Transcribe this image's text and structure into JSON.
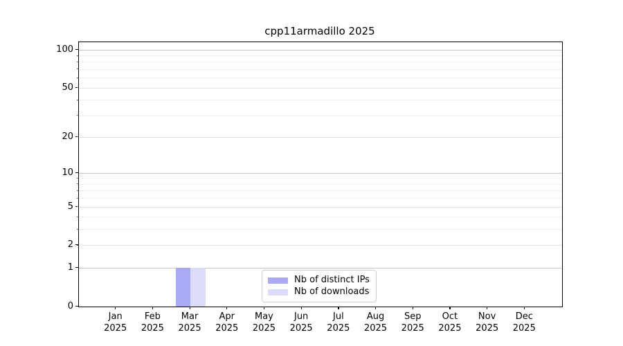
{
  "chart_data": {
    "type": "bar",
    "title": "cpp11armadillo 2025",
    "categories": [
      "Jan",
      "Feb",
      "Mar",
      "Apr",
      "May",
      "Jun",
      "Jul",
      "Aug",
      "Sep",
      "Oct",
      "Nov",
      "Dec"
    ],
    "year_label": "2025",
    "series": [
      {
        "name": "Nb of distinct IPs",
        "color": "#a9a9f5",
        "values": [
          0,
          0,
          1,
          0,
          0,
          0,
          0,
          0,
          0,
          0,
          0,
          0
        ]
      },
      {
        "name": "Nb of downloads",
        "color": "#dcdcf8",
        "values": [
          0,
          0,
          1,
          0,
          0,
          0,
          0,
          0,
          0,
          0,
          0,
          0
        ]
      }
    ],
    "yscale": "log1p",
    "ylim": [
      0,
      115
    ],
    "yticks": [
      0,
      1,
      2,
      5,
      10,
      20,
      50,
      100
    ],
    "gridlines": {
      "decade": {
        "values": [
          1,
          10,
          100
        ],
        "color": "#c6c6c6"
      },
      "labeled": {
        "values": [
          2,
          5,
          20,
          50
        ],
        "color": "#e3e3e3"
      },
      "minor": {
        "values": [
          3,
          4,
          6,
          7,
          8,
          9,
          30,
          40,
          60,
          70,
          80,
          90
        ],
        "color": "#efefef"
      }
    },
    "legend": {
      "position": "lower center"
    },
    "grid": true,
    "bar_group_width_ratio": 0.8
  }
}
